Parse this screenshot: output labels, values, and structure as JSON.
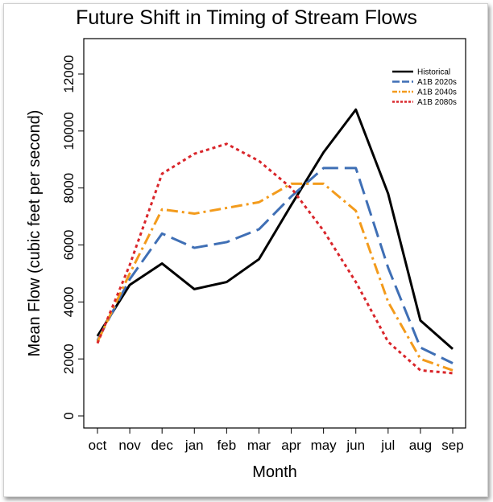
{
  "chart_data": {
    "type": "line",
    "title": "Future Shift in Timing of Stream Flows",
    "xlabel": "Month",
    "ylabel": "Mean Flow (cubic feet per second)",
    "categories": [
      "oct",
      "nov",
      "dec",
      "jan",
      "feb",
      "mar",
      "apr",
      "may",
      "jun",
      "jul",
      "aug",
      "sep"
    ],
    "ylim": [
      0,
      12000
    ],
    "yticks": [
      0,
      2000,
      4000,
      6000,
      8000,
      10000,
      12000
    ],
    "grid": false,
    "legend_position": "top-right",
    "series": [
      {
        "name": "Historical",
        "color": "#000000",
        "style": "solid",
        "values": [
          2800,
          4600,
          5350,
          4450,
          4700,
          5500,
          7400,
          9250,
          10750,
          7800,
          3350,
          2350
        ]
      },
      {
        "name": "A1B 2020s",
        "color": "#3f6fb5",
        "style": "dashed",
        "values": [
          2650,
          4800,
          6400,
          5900,
          6100,
          6550,
          7700,
          8700,
          8700,
          5200,
          2400,
          1850
        ]
      },
      {
        "name": "A1B 2040s",
        "color": "#f39b1c",
        "style": "dashdot",
        "values": [
          2600,
          5000,
          7250,
          7100,
          7300,
          7500,
          8150,
          8150,
          7200,
          4000,
          2000,
          1600
        ]
      },
      {
        "name": "A1B 2080s",
        "color": "#d9262b",
        "style": "dotted",
        "values": [
          2550,
          5300,
          8500,
          9200,
          9550,
          8950,
          8000,
          6500,
          4700,
          2600,
          1600,
          1500
        ]
      }
    ]
  }
}
